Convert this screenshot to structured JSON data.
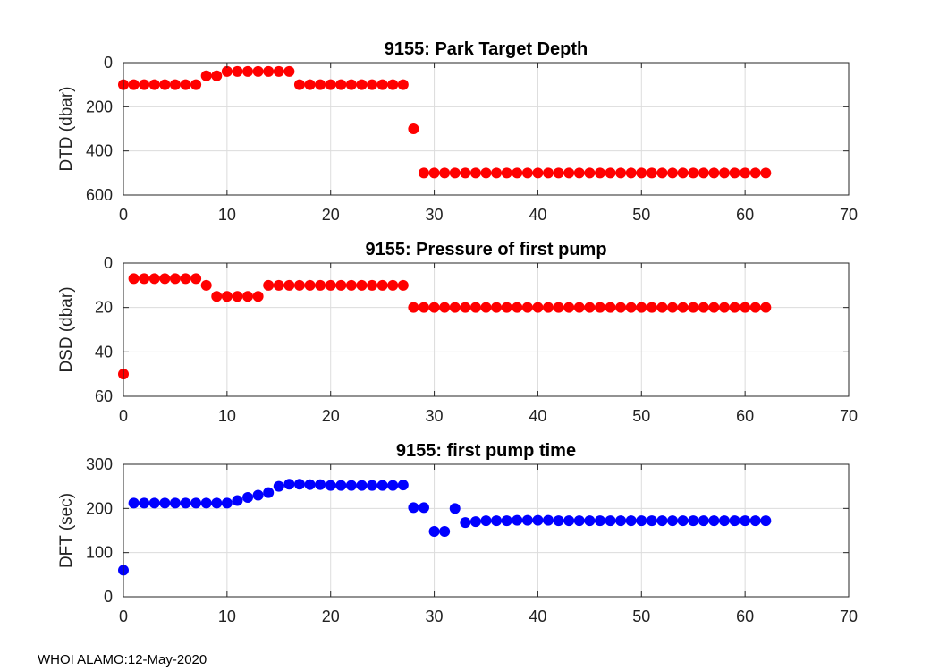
{
  "footer": "WHOI ALAMO:12-May-2020",
  "colors": {
    "red": "#ff0000",
    "blue": "#0000ff",
    "grid": "#dcdcdc",
    "axis": "#262626"
  },
  "chart_data": [
    {
      "type": "scatter",
      "title": "9155: Park Target Depth",
      "xlabel": "",
      "ylabel": "DTD (dbar)",
      "xlim": [
        0,
        70
      ],
      "ylim": [
        0,
        600
      ],
      "y_reversed": true,
      "x_ticks": [
        "0",
        "10",
        "20",
        "30",
        "40",
        "50",
        "60",
        "70"
      ],
      "y_ticks": [
        "0",
        "200",
        "400",
        "600"
      ],
      "grid": true,
      "color": "#ff0000",
      "x": [
        0,
        1,
        2,
        3,
        4,
        5,
        6,
        7,
        8,
        9,
        10,
        11,
        12,
        13,
        14,
        15,
        16,
        17,
        18,
        19,
        20,
        21,
        22,
        23,
        24,
        25,
        26,
        27,
        28,
        29,
        30,
        31,
        32,
        33,
        34,
        35,
        36,
        37,
        38,
        39,
        40,
        41,
        42,
        43,
        44,
        45,
        46,
        47,
        48,
        49,
        50,
        51,
        52,
        53,
        54,
        55,
        56,
        57,
        58,
        59,
        60,
        61,
        62
      ],
      "y": [
        100,
        100,
        100,
        100,
        100,
        100,
        100,
        100,
        60,
        60,
        40,
        40,
        40,
        40,
        40,
        40,
        40,
        100,
        100,
        100,
        100,
        100,
        100,
        100,
        100,
        100,
        100,
        100,
        300,
        500,
        500,
        500,
        500,
        500,
        500,
        500,
        500,
        500,
        500,
        500,
        500,
        500,
        500,
        500,
        500,
        500,
        500,
        500,
        500,
        500,
        500,
        500,
        500,
        500,
        500,
        500,
        500,
        500,
        500,
        500,
        500,
        500,
        500
      ]
    },
    {
      "type": "scatter",
      "title": "9155: Pressure of first pump",
      "xlabel": "",
      "ylabel": "DSD (dbar)",
      "xlim": [
        0,
        70
      ],
      "ylim": [
        0,
        60
      ],
      "y_reversed": true,
      "x_ticks": [
        "0",
        "10",
        "20",
        "30",
        "40",
        "50",
        "60",
        "70"
      ],
      "y_ticks": [
        "0",
        "20",
        "40",
        "60"
      ],
      "grid": true,
      "color": "#ff0000",
      "x": [
        0,
        1,
        2,
        3,
        4,
        5,
        6,
        7,
        8,
        9,
        10,
        11,
        12,
        13,
        14,
        15,
        16,
        17,
        18,
        19,
        20,
        21,
        22,
        23,
        24,
        25,
        26,
        27,
        28,
        29,
        30,
        31,
        32,
        33,
        34,
        35,
        36,
        37,
        38,
        39,
        40,
        41,
        42,
        43,
        44,
        45,
        46,
        47,
        48,
        49,
        50,
        51,
        52,
        53,
        54,
        55,
        56,
        57,
        58,
        59,
        60,
        61,
        62
      ],
      "y": [
        50,
        7,
        7,
        7,
        7,
        7,
        7,
        7,
        10,
        15,
        15,
        15,
        15,
        15,
        10,
        10,
        10,
        10,
        10,
        10,
        10,
        10,
        10,
        10,
        10,
        10,
        10,
        10,
        20,
        20,
        20,
        20,
        20,
        20,
        20,
        20,
        20,
        20,
        20,
        20,
        20,
        20,
        20,
        20,
        20,
        20,
        20,
        20,
        20,
        20,
        20,
        20,
        20,
        20,
        20,
        20,
        20,
        20,
        20,
        20,
        20,
        20,
        20
      ]
    },
    {
      "type": "scatter",
      "title": "9155: first pump time",
      "xlabel": "",
      "ylabel": "DFT (sec)",
      "xlim": [
        0,
        70
      ],
      "ylim": [
        0,
        300
      ],
      "y_reversed": false,
      "x_ticks": [
        "0",
        "10",
        "20",
        "30",
        "40",
        "50",
        "60",
        "70"
      ],
      "y_ticks": [
        "0",
        "100",
        "200",
        "300"
      ],
      "grid": true,
      "color": "#0000ff",
      "x": [
        0,
        1,
        2,
        3,
        4,
        5,
        6,
        7,
        8,
        9,
        10,
        11,
        12,
        13,
        14,
        15,
        16,
        17,
        18,
        19,
        20,
        21,
        22,
        23,
        24,
        25,
        26,
        27,
        28,
        29,
        30,
        31,
        32,
        33,
        34,
        35,
        36,
        37,
        38,
        39,
        40,
        41,
        42,
        43,
        44,
        45,
        46,
        47,
        48,
        49,
        50,
        51,
        52,
        53,
        54,
        55,
        56,
        57,
        58,
        59,
        60,
        61,
        62
      ],
      "y": [
        60,
        212,
        212,
        212,
        212,
        212,
        212,
        212,
        212,
        212,
        212,
        218,
        225,
        230,
        236,
        250,
        255,
        255,
        254,
        254,
        252,
        252,
        252,
        252,
        252,
        252,
        252,
        253,
        202,
        202,
        148,
        148,
        200,
        168,
        170,
        172,
        172,
        172,
        173,
        173,
        173,
        173,
        172,
        172,
        172,
        172,
        172,
        172,
        172,
        172,
        172,
        172,
        172,
        172,
        172,
        172,
        172,
        172,
        172,
        172,
        172,
        172,
        172
      ]
    }
  ]
}
